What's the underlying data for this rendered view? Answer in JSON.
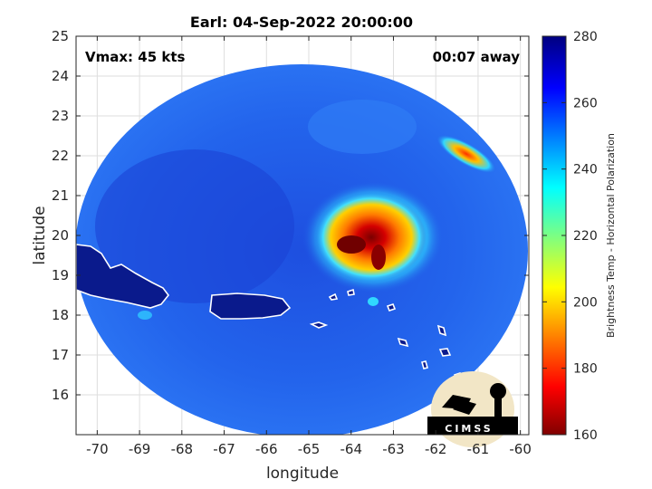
{
  "title": "Earl: 04-Sep-2022 20:00:00",
  "annotations": {
    "vmax": "Vmax: 45 kts",
    "time_offset": "00:07 away"
  },
  "axes": {
    "xlabel": "longitude",
    "ylabel": "latitude",
    "xlim": [
      -70.5,
      -59.8
    ],
    "ylim": [
      15,
      25
    ],
    "xticks": [
      -70,
      -69,
      -68,
      -67,
      -66,
      -65,
      -64,
      -63,
      -62,
      -61,
      -60
    ],
    "yticks": [
      16,
      17,
      18,
      19,
      20,
      21,
      22,
      23,
      24,
      25
    ],
    "grid": true
  },
  "colorbar": {
    "label": "Brightness Temp - Horizontal Polarization",
    "min": 160,
    "max": 280,
    "ticks": [
      160,
      180,
      200,
      220,
      240,
      260,
      280
    ],
    "colormap": "jet"
  },
  "logo": {
    "text": "CIMSS"
  },
  "colors": {
    "background_field": "#1f5ce8",
    "land_outline": "#ffffff",
    "core_max": "#7f0000"
  }
}
